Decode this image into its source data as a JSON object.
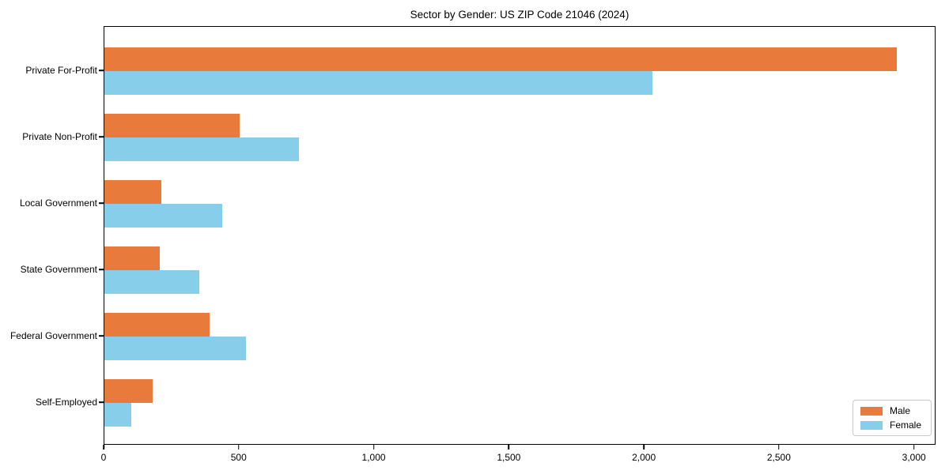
{
  "chart_data": {
    "type": "bar",
    "orientation": "horizontal",
    "title": "Sector by Gender: US ZIP Code 21046 (2024)",
    "categories": [
      "Private For-Profit",
      "Private Non-Profit",
      "Local Government",
      "State Government",
      "Federal Government",
      "Self-Employed"
    ],
    "series": [
      {
        "name": "Male",
        "color": "#e87b3c",
        "values": [
          2935,
          500,
          210,
          205,
          390,
          180
        ]
      },
      {
        "name": "Female",
        "color": "#87ceeb",
        "values": [
          2030,
          720,
          435,
          350,
          525,
          100
        ]
      }
    ],
    "xlabel": "",
    "ylabel": "",
    "xlim": [
      0,
      3080
    ],
    "xticks": {
      "values": [
        0,
        500,
        1000,
        1500,
        2000,
        2500,
        3000
      ],
      "labels": [
        "0",
        "500",
        "1,000",
        "1,500",
        "2,000",
        "2,500",
        "3,000"
      ]
    },
    "legend": {
      "position": "lower right",
      "entries": [
        "Male",
        "Female"
      ]
    },
    "grid": false,
    "plot_border": "#000000",
    "background": "#ffffff"
  }
}
